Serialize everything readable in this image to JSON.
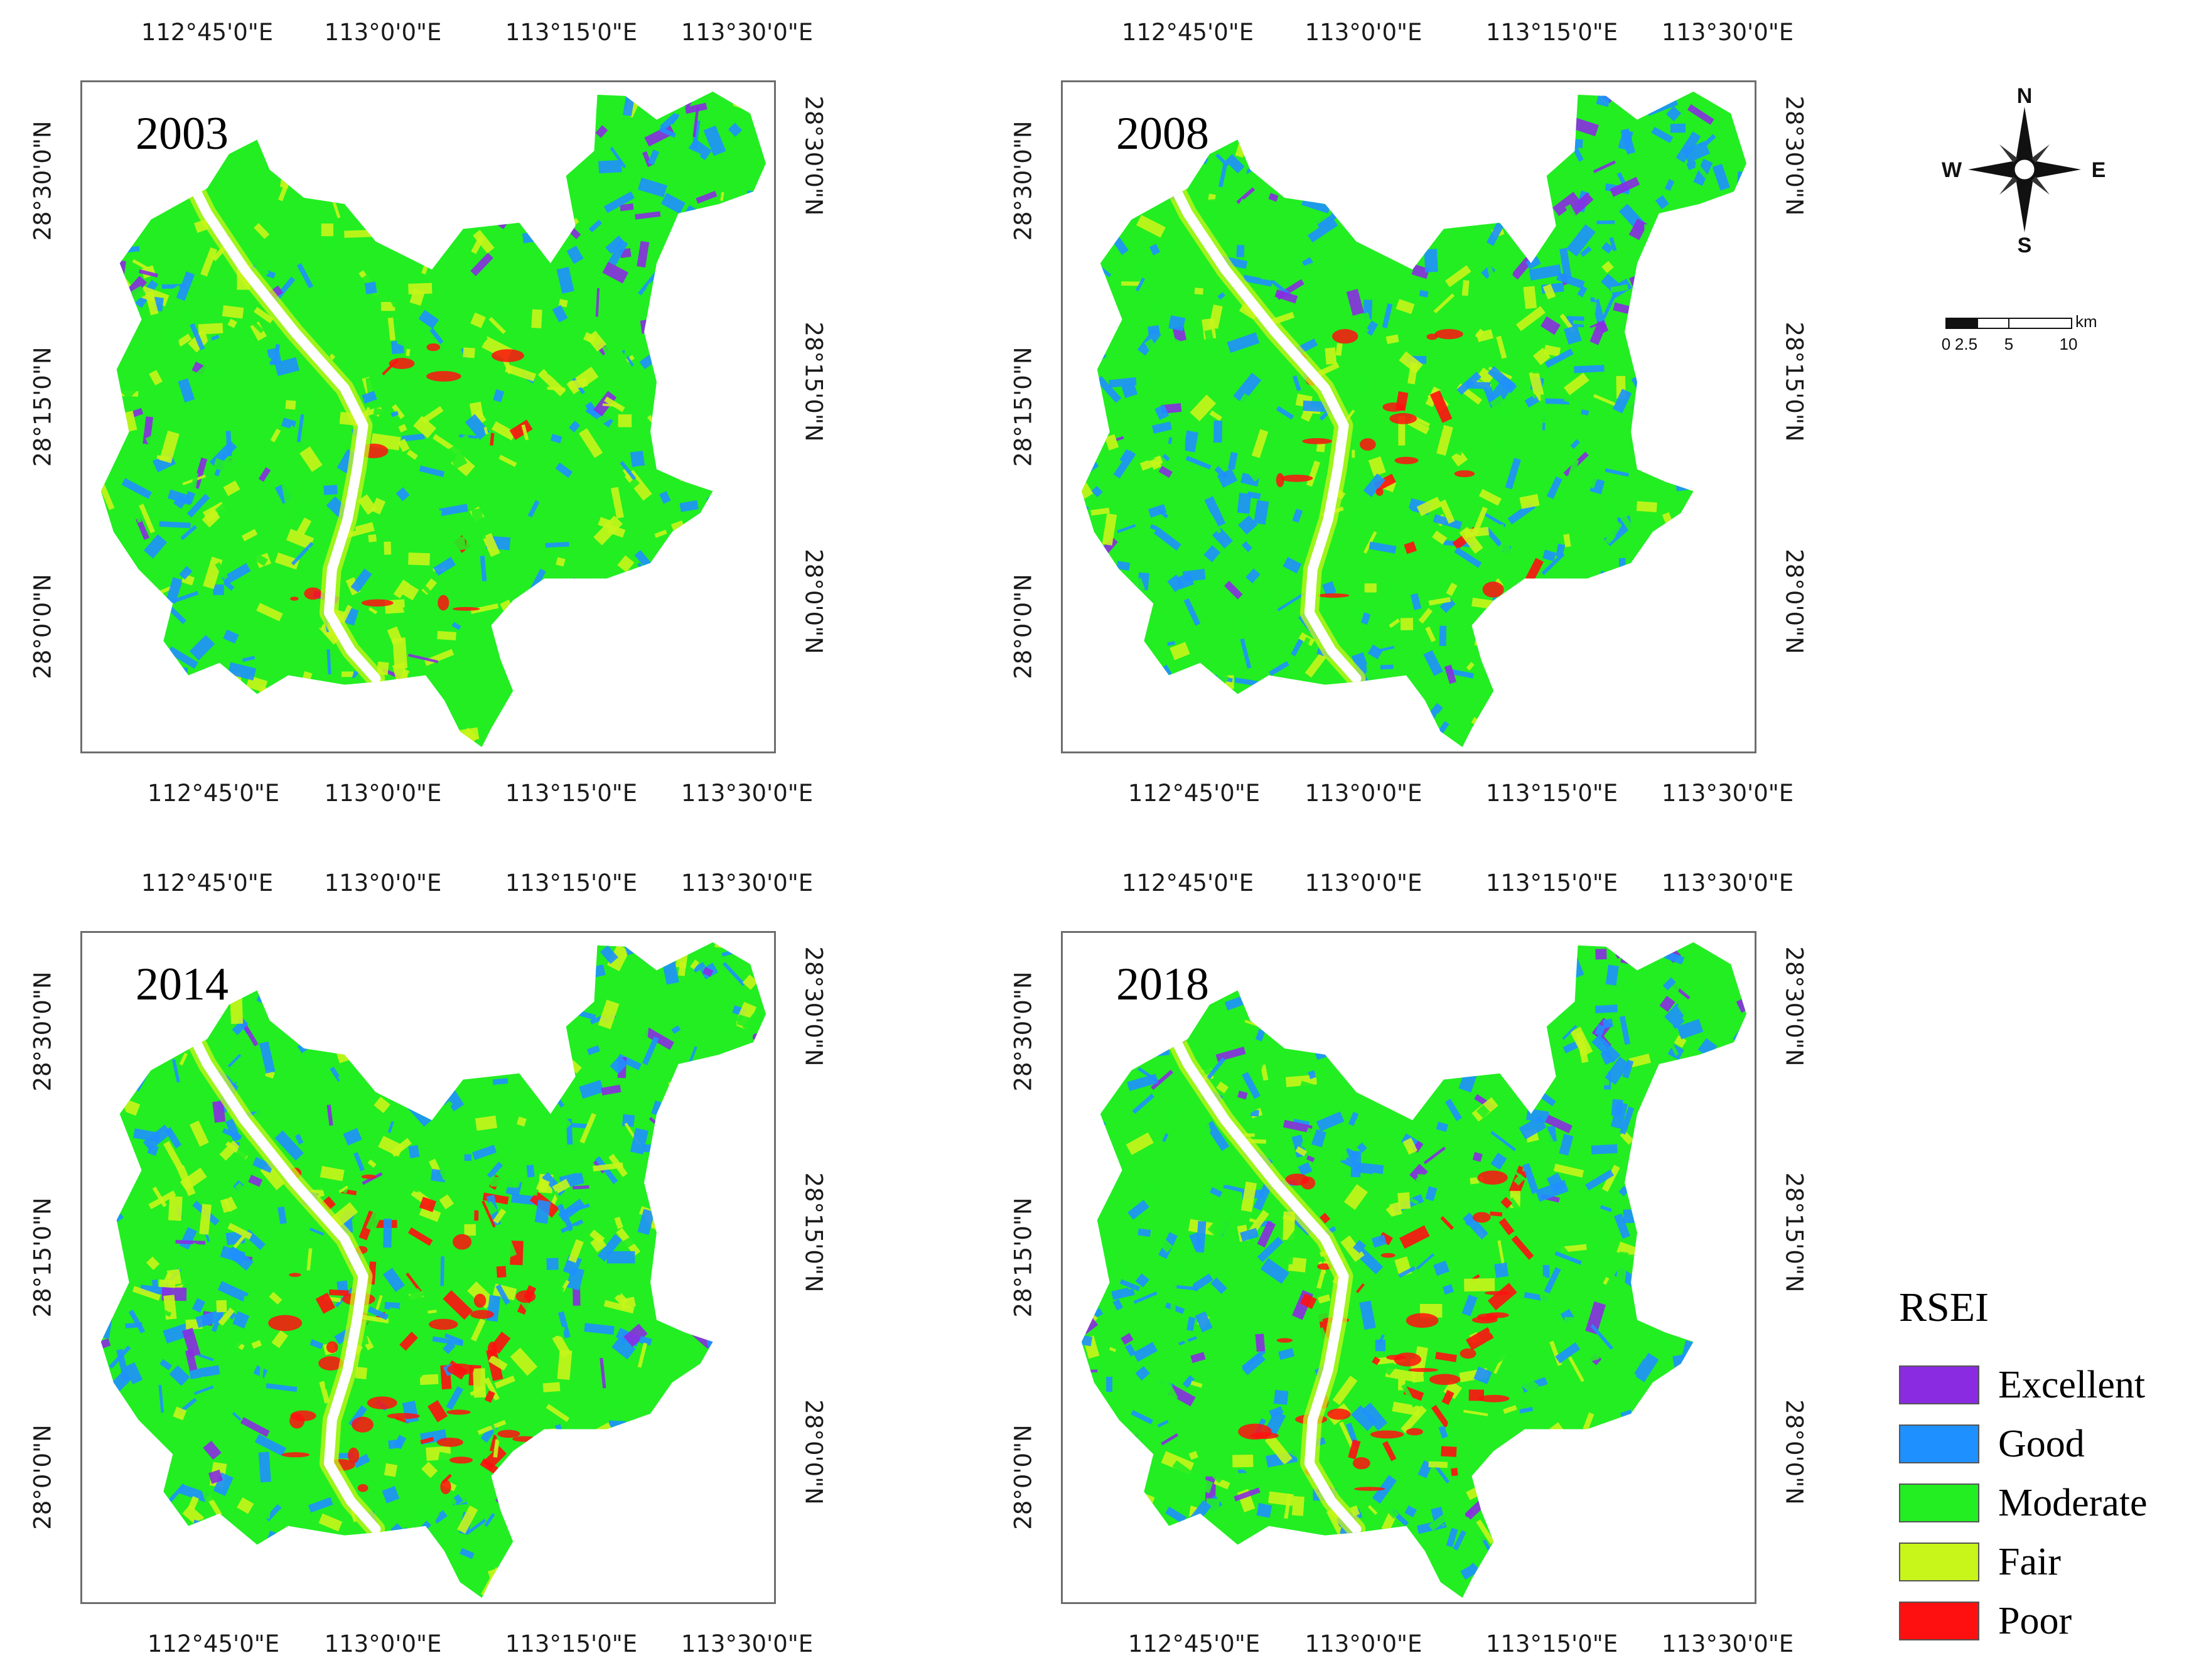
{
  "figure": {
    "panels": [
      {
        "year": "2003",
        "top_ticks": [
          "112°45'0\"E",
          "113°0'0\"E",
          "113°15'0\"E",
          "113°30'0\"E"
        ],
        "bottom_ticks": [
          "112°45'0\"E",
          "113°0'0\"E",
          "113°15'0\"E",
          "113°30'0\"E"
        ],
        "left_ticks": [
          "28°30'0\"N",
          "28°15'0\"N",
          "28°0'0\"N"
        ],
        "right_ticks": [
          "28°30'0\"N",
          "28°15'0\"N",
          "28°0'0\"N"
        ]
      },
      {
        "year": "2008",
        "top_ticks": [
          "112°45'0\"E",
          "113°0'0\"E",
          "113°15'0\"E",
          "113°30'0\"E"
        ],
        "bottom_ticks": [
          "112°45'0\"E",
          "113°0'0\"E",
          "113°15'0\"E",
          "113°30'0\"E"
        ],
        "left_ticks": [
          "28°30'0\"N",
          "28°15'0\"N",
          "28°0'0\"N"
        ],
        "right_ticks": [
          "28°30'0\"N",
          "28°15'0\"N",
          "28°0'0\"N"
        ]
      },
      {
        "year": "2014",
        "top_ticks": [
          "112°45'0\"E",
          "113°0'0\"E",
          "113°15'0\"E",
          "113°30'0\"E"
        ],
        "bottom_ticks": [
          "112°45'0\"E",
          "113°0'0\"E",
          "113°15'0\"E",
          "113°30'0\"E"
        ],
        "left_ticks": [
          "28°30'0\"N",
          "28°15'0\"N",
          "28°0'0\"N"
        ],
        "right_ticks": [
          "28°30'0\"N",
          "28°15'0\"N",
          "28°0'0\"N"
        ]
      },
      {
        "year": "2018",
        "top_ticks": [
          "112°45'0\"E",
          "113°0'0\"E",
          "113°15'0\"E",
          "113°30'0\"E"
        ],
        "bottom_ticks": [
          "112°45'0\"E",
          "113°0'0\"E",
          "113°15'0\"E",
          "113°30'0\"E"
        ],
        "left_ticks": [
          "28°30'0\"N",
          "28°15'0\"N",
          "28°0'0\"N"
        ],
        "right_ticks": [
          "28°30'0\"N",
          "28°15'0\"N",
          "28°0'0\"N"
        ]
      }
    ]
  },
  "compass": {
    "north": "N",
    "south": "S",
    "east": "E",
    "west": "W"
  },
  "scalebar": {
    "unit": "km",
    "labels": [
      "0",
      "2.5",
      "5",
      "10"
    ]
  },
  "legend": {
    "title": "RSEI",
    "items": [
      {
        "label": "Excellent",
        "color": "#8a2be2"
      },
      {
        "label": "Good",
        "color": "#1e90ff"
      },
      {
        "label": "Moderate",
        "color": "#22ee22"
      },
      {
        "label": "Fair",
        "color": "#c8f51a"
      },
      {
        "label": "Poor",
        "color": "#ff1010"
      }
    ]
  },
  "colors": {
    "excellent": "#8a2be2",
    "good": "#1e90ff",
    "moderate": "#22ee22",
    "fair": "#c8f51a",
    "poor": "#ff1010",
    "river": "#ffffff",
    "frame": "#6e6e6e"
  }
}
